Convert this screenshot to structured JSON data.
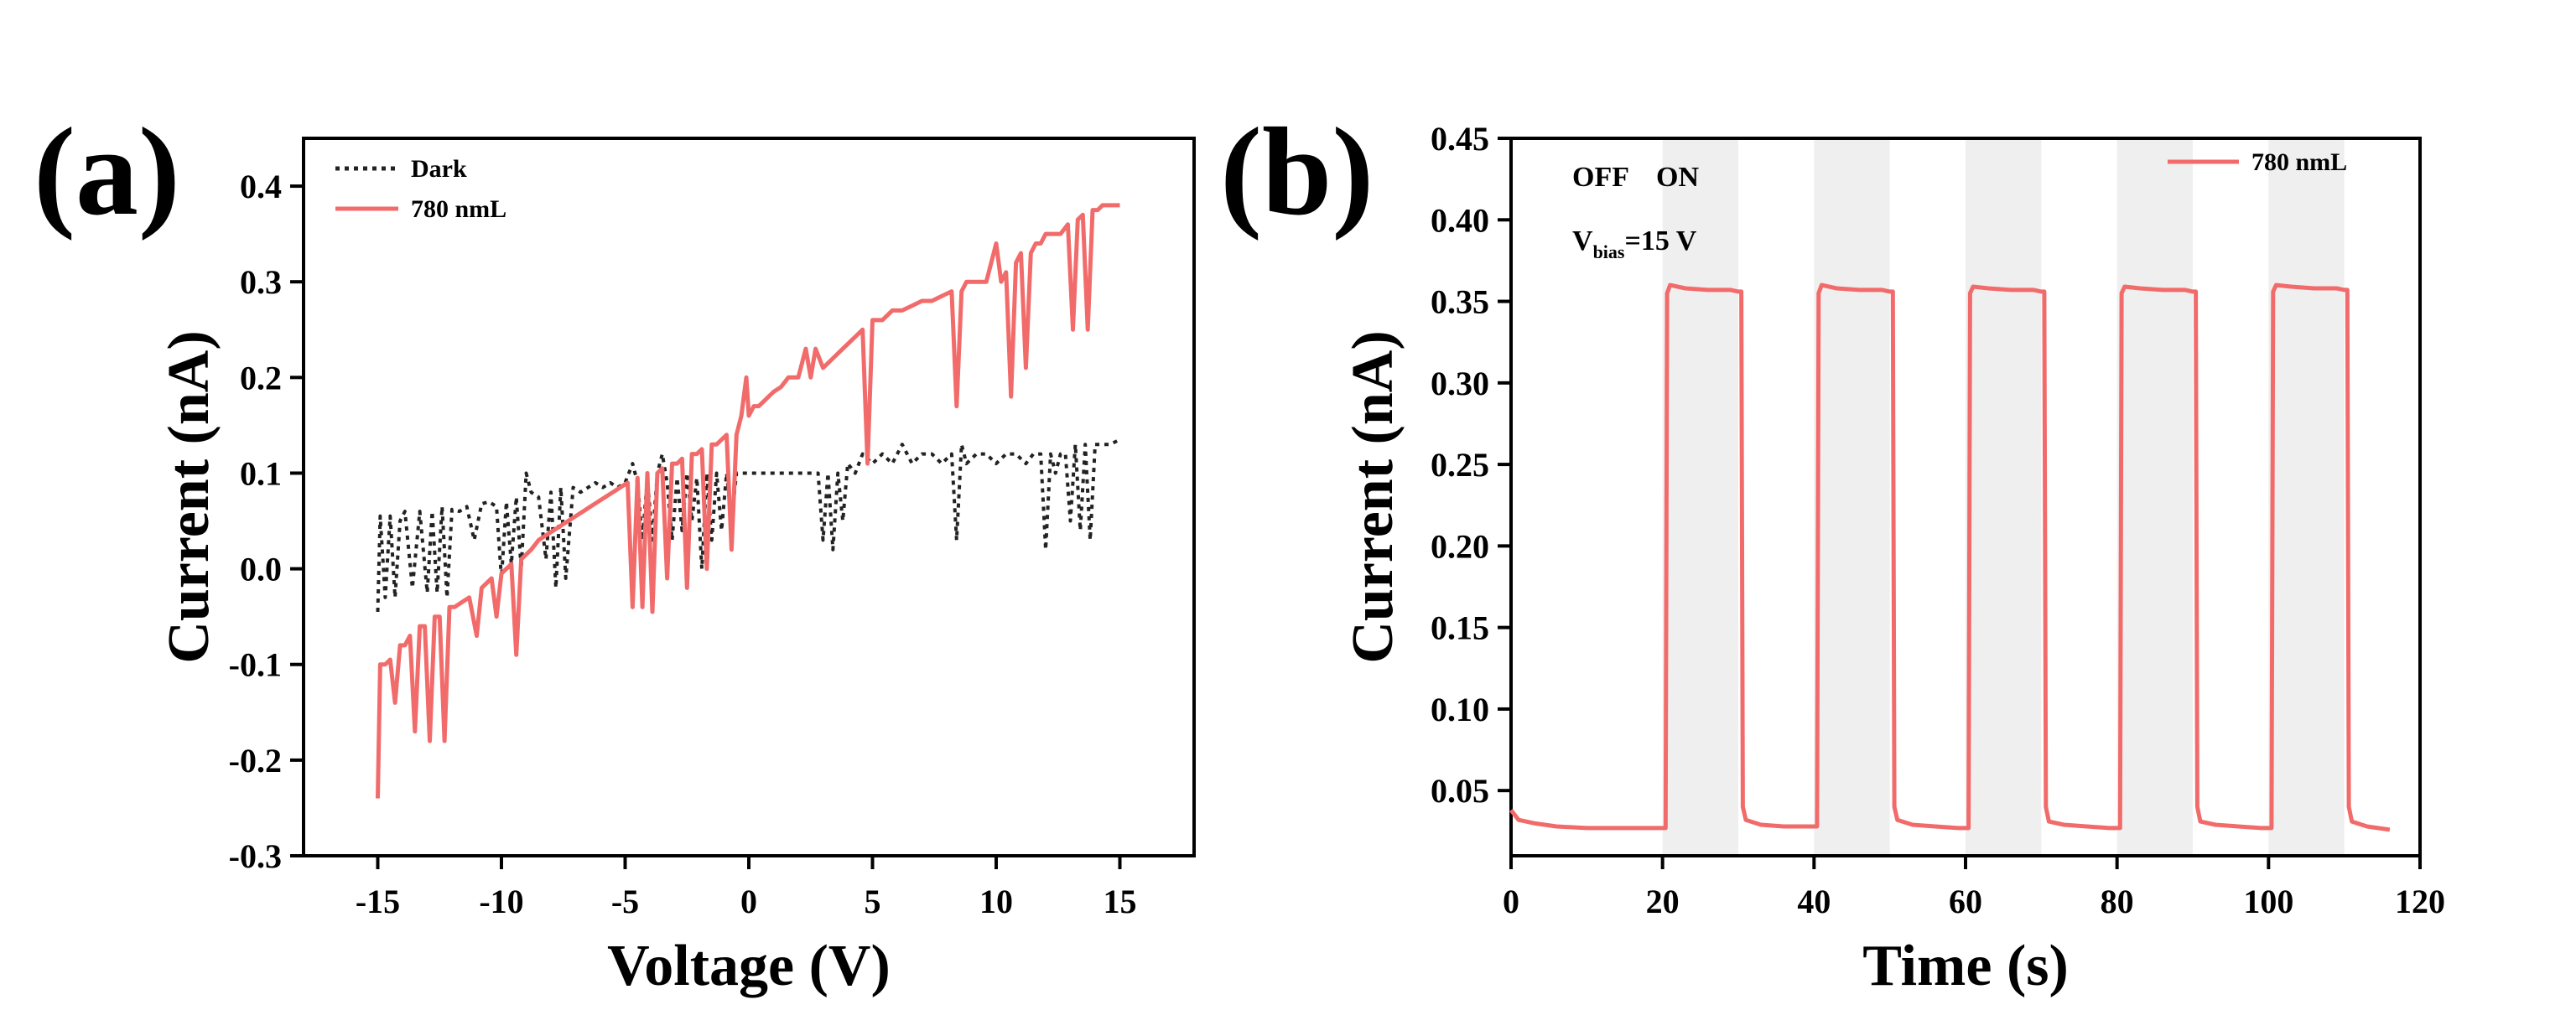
{
  "colors": {
    "light": "#f26b6b",
    "dark": "#222222",
    "on_band": "#efefef"
  },
  "chart_data": [
    {
      "panel": "(a)",
      "type": "line",
      "xlabel": "Voltage (V)",
      "ylabel": "Current (nA)",
      "xlim": [
        -18,
        18
      ],
      "ylim": [
        -0.3,
        0.45
      ],
      "xticks": [
        -15,
        -10,
        -5,
        0,
        5,
        10,
        15
      ],
      "yticks": [
        -0.3,
        -0.2,
        -0.1,
        0.0,
        0.1,
        0.2,
        0.3,
        0.4
      ],
      "legend": [
        "Dark",
        "780 nmL"
      ],
      "series": [
        {
          "name": "Dark",
          "style": "dotted",
          "x": [
            -15,
            -14.9,
            -14.7,
            -14.5,
            -14.3,
            -14.1,
            -13.9,
            -13.6,
            -13.3,
            -13.0,
            -12.8,
            -12.6,
            -12.4,
            -12.2,
            -12.0,
            -11.7,
            -11.4,
            -11.1,
            -10.8,
            -10.5,
            -10.2,
            -10.0,
            -9.8,
            -9.6,
            -9.4,
            -9.2,
            -9.0,
            -8.8,
            -8.5,
            -8.2,
            -8.0,
            -7.8,
            -7.6,
            -7.4,
            -7.1,
            -6.8,
            -6.5,
            -6.2,
            -5.9,
            -5.6,
            -5.3,
            -5.0,
            -4.7,
            -4.5,
            -4.3,
            -4.1,
            -3.9,
            -3.7,
            -3.5,
            -3.3,
            -3.1,
            -2.9,
            -2.7,
            -2.5,
            -2.3,
            -2.1,
            -1.9,
            -1.7,
            -1.5,
            -1.3,
            -1.1,
            -0.9,
            -0.7,
            -0.5,
            -0.3,
            -0.1,
            0.1,
            0.5,
            1.0,
            1.5,
            2.0,
            2.4,
            2.8,
            3.0,
            3.2,
            3.4,
            3.6,
            3.8,
            4.0,
            4.3,
            4.6,
            5.0,
            5.4,
            5.8,
            6.2,
            6.6,
            7.0,
            7.4,
            7.8,
            8.2,
            8.4,
            8.6,
            8.8,
            9.2,
            9.6,
            10.0,
            10.4,
            10.8,
            11.2,
            11.5,
            11.8,
            12.0,
            12.2,
            12.4,
            12.6,
            12.8,
            13.0,
            13.2,
            13.4,
            13.6,
            13.8,
            14.0,
            14.3,
            14.6,
            15.0
          ],
          "y": [
            -0.045,
            0.055,
            -0.03,
            0.055,
            -0.03,
            0.05,
            0.06,
            -0.02,
            0.06,
            -0.025,
            0.06,
            -0.025,
            0.065,
            -0.03,
            0.062,
            0.06,
            0.065,
            0.03,
            0.068,
            0.07,
            0.065,
            -0.01,
            0.07,
            0.005,
            0.075,
            0.0,
            0.1,
            0.08,
            0.075,
            0.01,
            0.08,
            -0.02,
            0.085,
            -0.01,
            0.085,
            0.08,
            0.085,
            0.09,
            0.085,
            0.09,
            0.085,
            0.09,
            0.11,
            0.09,
            0.03,
            0.095,
            0.03,
            0.1,
            0.12,
            0.09,
            0.03,
            0.095,
            0.04,
            0.1,
            0.05,
            0.095,
            0.0,
            0.1,
            0.03,
            0.1,
            0.04,
            0.1,
            0.05,
            0.1,
            0.1,
            0.1,
            0.1,
            0.1,
            0.1,
            0.1,
            0.1,
            0.1,
            0.1,
            0.03,
            0.1,
            0.02,
            0.1,
            0.05,
            0.11,
            0.1,
            0.12,
            0.11,
            0.12,
            0.11,
            0.13,
            0.11,
            0.12,
            0.12,
            0.11,
            0.12,
            0.03,
            0.13,
            0.11,
            0.12,
            0.12,
            0.11,
            0.12,
            0.12,
            0.11,
            0.12,
            0.12,
            0.02,
            0.12,
            0.1,
            0.12,
            0.12,
            0.05,
            0.13,
            0.04,
            0.13,
            0.03,
            0.13,
            0.13,
            0.13,
            0.135
          ]
        },
        {
          "name": "780 nmL",
          "style": "solid",
          "x": [
            -15,
            -14.9,
            -14.7,
            -14.5,
            -14.3,
            -14.1,
            -13.9,
            -13.7,
            -13.5,
            -13.3,
            -13.1,
            -12.9,
            -12.7,
            -12.5,
            -12.3,
            -12.1,
            -11.9,
            -11.6,
            -11.3,
            -11.0,
            -10.8,
            -10.6,
            -10.4,
            -10.2,
            -10.0,
            -9.8,
            -9.6,
            -9.4,
            -9.2,
            -9.0,
            -8.8,
            -8.5,
            -8.2,
            -7.9,
            -7.6,
            -7.3,
            -7.0,
            -6.7,
            -6.4,
            -6.1,
            -5.8,
            -5.5,
            -5.2,
            -4.9,
            -4.7,
            -4.5,
            -4.3,
            -4.1,
            -3.9,
            -3.7,
            -3.5,
            -3.3,
            -3.1,
            -2.9,
            -2.7,
            -2.5,
            -2.3,
            -2.1,
            -1.9,
            -1.7,
            -1.5,
            -1.3,
            -1.1,
            -0.9,
            -0.7,
            -0.5,
            -0.3,
            -0.1,
            0.0,
            0.2,
            0.4,
            0.6,
            0.8,
            1.0,
            1.3,
            1.6,
            2.0,
            2.3,
            2.5,
            2.7,
            3.0,
            3.4,
            3.8,
            4.2,
            4.6,
            4.8,
            5.0,
            5.4,
            5.8,
            6.2,
            6.6,
            7.0,
            7.4,
            7.8,
            8.2,
            8.4,
            8.6,
            8.8,
            9.2,
            9.6,
            10.0,
            10.2,
            10.4,
            10.6,
            10.8,
            11.0,
            11.2,
            11.4,
            11.6,
            11.8,
            12.0,
            12.3,
            12.6,
            12.9,
            13.1,
            13.3,
            13.5,
            13.7,
            13.9,
            14.1,
            14.3,
            14.5,
            14.7,
            15.0
          ],
          "y": [
            -0.24,
            -0.1,
            -0.1,
            -0.095,
            -0.14,
            -0.08,
            -0.08,
            -0.07,
            -0.17,
            -0.06,
            -0.06,
            -0.18,
            -0.05,
            -0.05,
            -0.18,
            -0.04,
            -0.04,
            -0.035,
            -0.03,
            -0.07,
            -0.02,
            -0.015,
            -0.01,
            -0.05,
            -0.005,
            0.0,
            0.005,
            -0.09,
            0.01,
            0.015,
            0.02,
            0.03,
            0.035,
            0.04,
            0.045,
            0.05,
            0.055,
            0.06,
            0.065,
            0.07,
            0.075,
            0.08,
            0.085,
            0.09,
            -0.04,
            0.095,
            -0.04,
            0.1,
            -0.045,
            0.1,
            0.105,
            -0.01,
            0.11,
            0.11,
            0.115,
            -0.02,
            0.12,
            0.12,
            0.125,
            0.0,
            0.13,
            0.13,
            0.135,
            0.14,
            0.02,
            0.14,
            0.16,
            0.2,
            0.16,
            0.17,
            0.17,
            0.175,
            0.18,
            0.185,
            0.19,
            0.2,
            0.2,
            0.23,
            0.2,
            0.23,
            0.21,
            0.22,
            0.23,
            0.24,
            0.25,
            0.11,
            0.26,
            0.26,
            0.27,
            0.27,
            0.275,
            0.28,
            0.28,
            0.285,
            0.29,
            0.17,
            0.29,
            0.3,
            0.3,
            0.3,
            0.34,
            0.3,
            0.31,
            0.18,
            0.32,
            0.33,
            0.21,
            0.33,
            0.34,
            0.34,
            0.35,
            0.35,
            0.35,
            0.36,
            0.25,
            0.365,
            0.37,
            0.25,
            0.375,
            0.375,
            0.38,
            0.38,
            0.38,
            0.38
          ]
        }
      ]
    },
    {
      "panel": "(b)",
      "type": "line",
      "xlabel": "Time (s)",
      "ylabel": "Current (nA)",
      "xlim": [
        0,
        120
      ],
      "ylim": [
        0.01,
        0.45
      ],
      "xticks": [
        0,
        20,
        40,
        60,
        80,
        100,
        120
      ],
      "yticks": [
        0.05,
        0.1,
        0.15,
        0.2,
        0.25,
        0.3,
        0.35,
        0.4,
        0.45
      ],
      "legend": [
        "780 nmL"
      ],
      "annotations": {
        "off_label": "OFF",
        "on_label": "ON",
        "bias_prefix": "V",
        "bias_sub": "bias",
        "bias_suffix": "=15 V"
      },
      "on_intervals": [
        [
          20,
          30
        ],
        [
          40,
          50
        ],
        [
          60,
          70
        ],
        [
          80,
          90
        ],
        [
          100,
          110
        ]
      ],
      "series": [
        {
          "name": "780 nmL",
          "style": "solid",
          "x": [
            0,
            1,
            3,
            6,
            10,
            15,
            20.4,
            20.6,
            21,
            23,
            26,
            29,
            30,
            30.4,
            30.6,
            31,
            33,
            36,
            39,
            40.4,
            40.6,
            41,
            43,
            46,
            49,
            50,
            50.4,
            50.6,
            51,
            53,
            56,
            59,
            60.4,
            60.6,
            61,
            63,
            66,
            69,
            70,
            70.4,
            70.6,
            71,
            73,
            76,
            79,
            80.4,
            80.6,
            81,
            83,
            86,
            89,
            90,
            90.4,
            90.6,
            91,
            93,
            96,
            99,
            100.4,
            100.6,
            101,
            103,
            106,
            109,
            110,
            110.4,
            110.6,
            111,
            113,
            116
          ],
          "y": [
            0.038,
            0.032,
            0.03,
            0.028,
            0.027,
            0.027,
            0.027,
            0.355,
            0.36,
            0.358,
            0.357,
            0.357,
            0.356,
            0.356,
            0.04,
            0.032,
            0.029,
            0.028,
            0.028,
            0.028,
            0.355,
            0.36,
            0.358,
            0.357,
            0.357,
            0.356,
            0.356,
            0.04,
            0.032,
            0.029,
            0.028,
            0.027,
            0.027,
            0.355,
            0.359,
            0.358,
            0.357,
            0.357,
            0.356,
            0.356,
            0.04,
            0.031,
            0.029,
            0.028,
            0.027,
            0.027,
            0.355,
            0.359,
            0.358,
            0.357,
            0.357,
            0.356,
            0.356,
            0.04,
            0.031,
            0.029,
            0.028,
            0.027,
            0.027,
            0.356,
            0.36,
            0.359,
            0.358,
            0.358,
            0.357,
            0.357,
            0.04,
            0.031,
            0.028,
            0.026
          ]
        }
      ]
    }
  ]
}
